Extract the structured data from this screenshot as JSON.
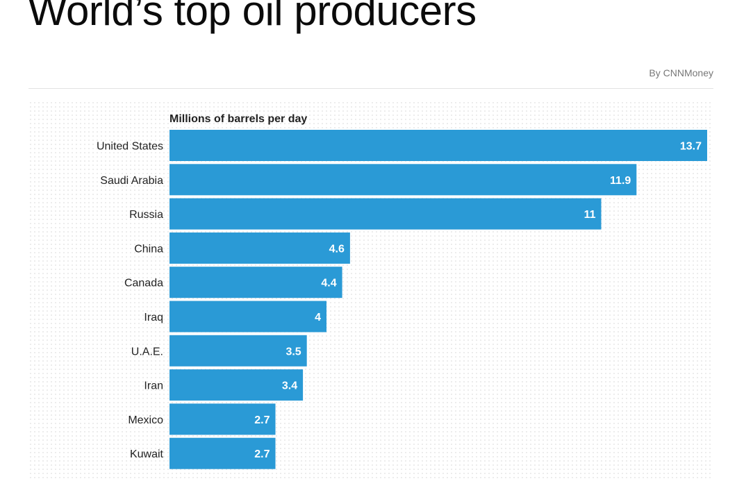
{
  "header": {
    "title": "World’s top oil producers",
    "byline": "By CNNMoney"
  },
  "colors": {
    "bar": "#2a9ad6",
    "text": "#222222",
    "value_text": "#ffffff"
  },
  "chart_data": {
    "type": "bar",
    "orientation": "horizontal",
    "title": "World’s top oil producers",
    "unit_label": "Millions of barrels per day",
    "categories": [
      "United States",
      "Saudi Arabia",
      "Russia",
      "China",
      "Canada",
      "Iraq",
      "U.A.E.",
      "Iran",
      "Mexico",
      "Kuwait"
    ],
    "values": [
      13.7,
      11.9,
      11,
      4.6,
      4.4,
      4,
      3.5,
      3.4,
      2.7,
      2.7
    ],
    "value_labels": [
      "13.7",
      "11.9",
      "11",
      "4.6",
      "4.4",
      "4",
      "3.5",
      "3.4",
      "2.7",
      "2.7"
    ],
    "xlim": [
      0,
      13.7
    ],
    "grid": false,
    "legend": "none"
  }
}
